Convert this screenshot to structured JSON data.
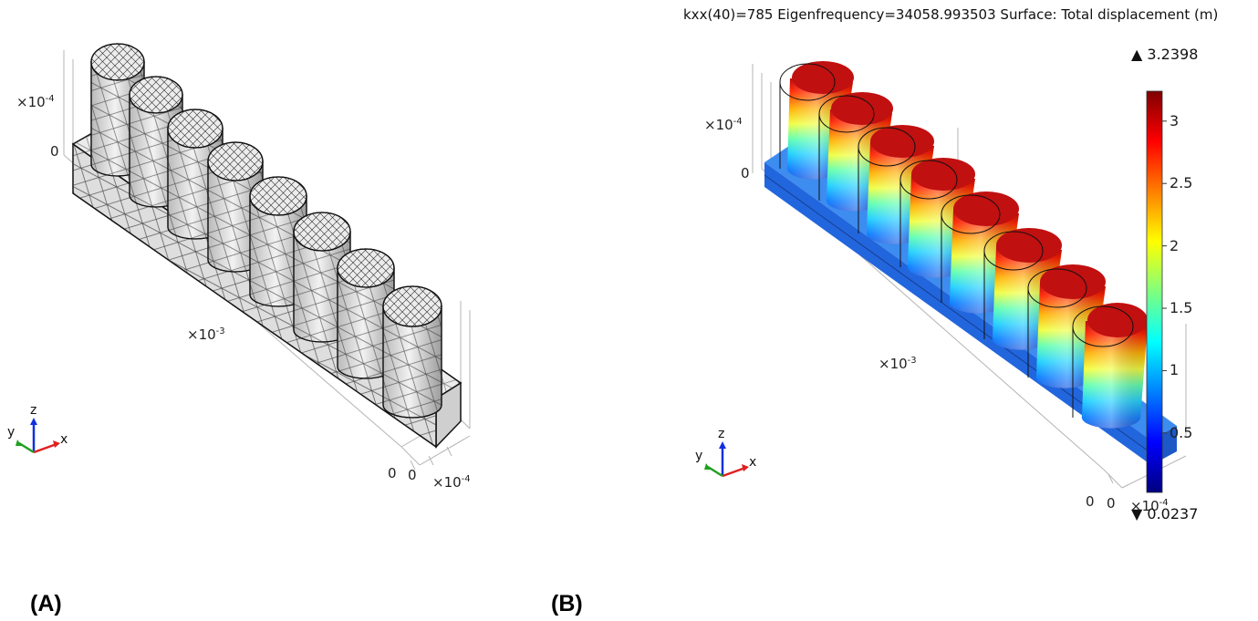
{
  "panel_a": {
    "label": "(A)",
    "z_scale": "×10",
    "z_scale_exp": "-4",
    "z_zero": "0",
    "x_scale": "×10",
    "x_scale_exp": "-3",
    "y_zero_1": "0",
    "y_zero_2": "0",
    "y_scale": "×10",
    "y_scale_exp": "-4",
    "triad": {
      "z": "z",
      "y": "y",
      "x": "x"
    }
  },
  "panel_b": {
    "label": "(B)",
    "title": "kxx(40)=785 Eigenfrequency=34058.993503   Surface: Total displacement (m)",
    "z_scale": "×10",
    "z_scale_exp": "-4",
    "z_zero": "0",
    "x_scale": "×10",
    "x_scale_exp": "-3",
    "y_zero_1": "0",
    "y_zero_2": "0",
    "y_scale": "×10",
    "y_scale_exp": "-4",
    "triad": {
      "z": "z",
      "y": "y",
      "x": "x"
    },
    "colorbar": {
      "max_marker": "▲ 3.2398",
      "min_marker": "▼ 0.0237",
      "max": 3.2398,
      "min": 0.0237,
      "ticks": [
        "3",
        "2.5",
        "2",
        "1.5",
        "1",
        "0.5"
      ],
      "tick_values": [
        3,
        2.5,
        2,
        1.5,
        1,
        0.5
      ],
      "colormap": [
        "#00007f",
        "#0000ff",
        "#007fff",
        "#00ffff",
        "#7fff7f",
        "#ffff00",
        "#ff7f00",
        "#ff0000",
        "#7f0000"
      ]
    }
  },
  "colors": {
    "mesh_edge": "#1a1a1a",
    "mesh_face": "#e6e6e6",
    "base_blue": "#2f78e8",
    "axis_x": "#e02020",
    "axis_y": "#20a020",
    "axis_z": "#1030e0"
  }
}
